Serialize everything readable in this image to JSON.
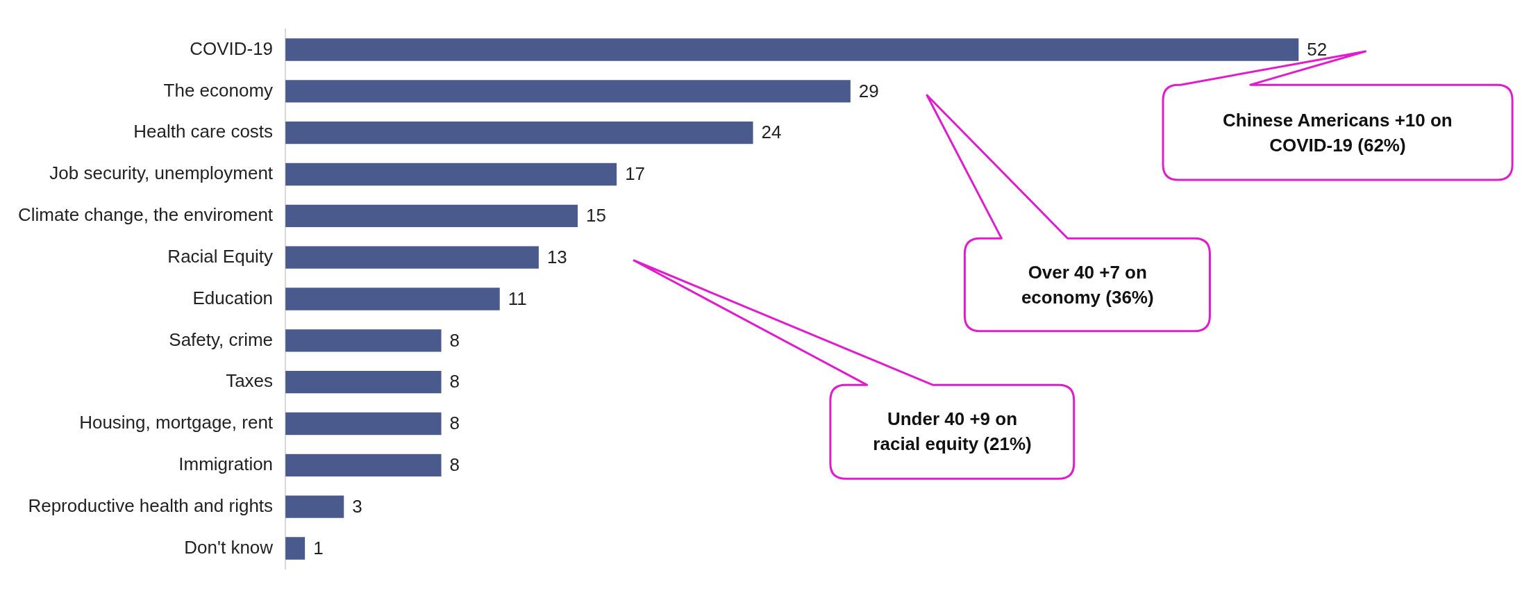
{
  "chart_data": {
    "type": "bar",
    "orientation": "horizontal",
    "color": "#4b5a8c",
    "data_labels": true,
    "grid": false,
    "legend": false,
    "tick_labels": "y",
    "categories": [
      "COVID-19",
      "The economy",
      "Health care costs",
      "Job security, unemployment",
      "Climate change, the enviroment",
      "Racial Equity",
      "Education",
      "Safety, crime",
      "Taxes",
      "Housing, mortgage, rent",
      "Immigration",
      "Reproductive health and rights",
      "Don't know"
    ],
    "values": [
      52,
      29,
      24,
      17,
      15,
      13,
      11,
      8,
      8,
      8,
      8,
      3,
      1
    ],
    "annotations": [
      "Chinese Americans +10 on COVID-19 (62%)",
      "Over 40 +7 on economy (36%)",
      "Under 40 +9 on racial equity (21%)"
    ]
  }
}
